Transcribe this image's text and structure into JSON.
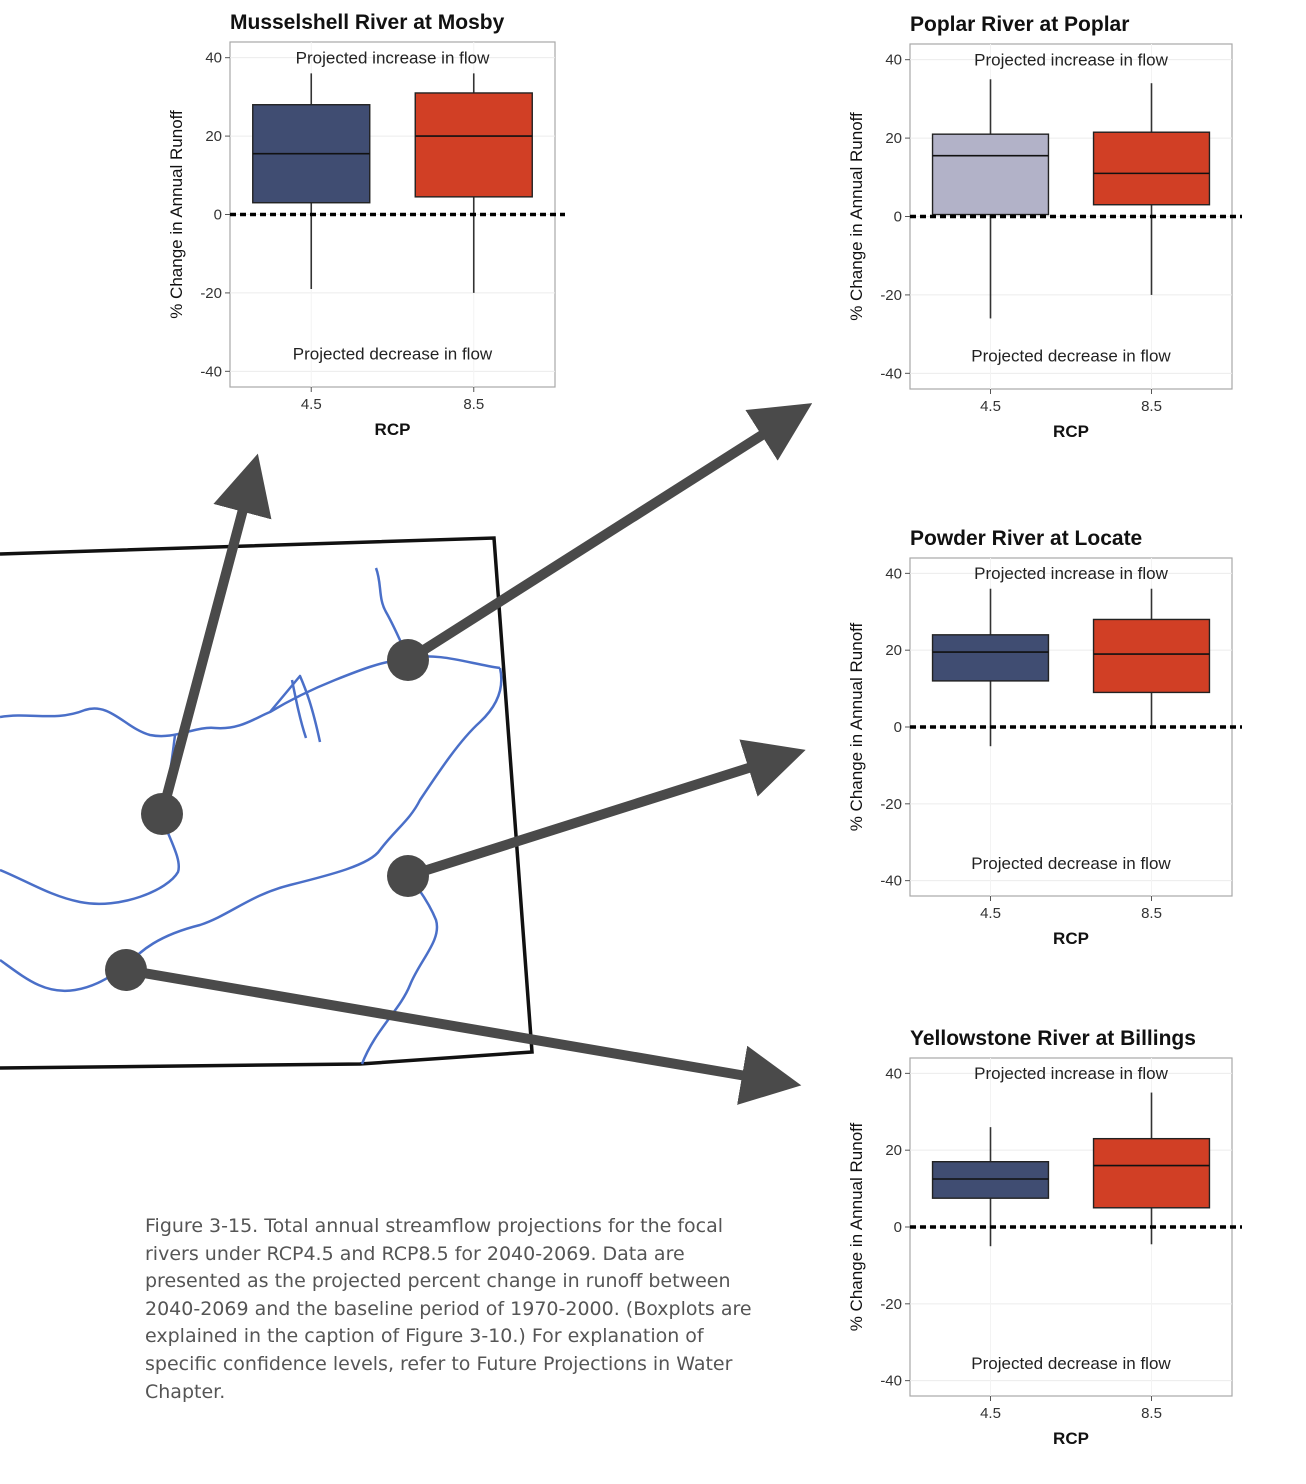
{
  "colors": {
    "rcp45": "#404d72",
    "rcp45_light": "#b2b2c8",
    "rcp85": "#d13f25",
    "river": "#4a6fc8",
    "arrow": "#4a4a4a"
  },
  "chart_data": [
    {
      "type": "boxplot",
      "title": "Musselshell River at Mosby",
      "xlabel": "RCP",
      "ylabel": "% Change in Annual Runoff",
      "categories": [
        "4.5",
        "8.5"
      ],
      "yticks": [
        40,
        20,
        0,
        -20,
        -40
      ],
      "ylim": [
        -44,
        44
      ],
      "reference_line": 0,
      "annotations": {
        "top": "Projected increase in flow",
        "bottom": "Projected decrease in flow"
      },
      "boxes": [
        {
          "rcp": "4.5",
          "whisker_low": -19,
          "q1": 3,
          "median": 15.5,
          "q3": 28,
          "whisker_high": 36,
          "color": "#404d72"
        },
        {
          "rcp": "8.5",
          "whisker_low": -20,
          "q1": 4.5,
          "median": 20,
          "q3": 31,
          "whisker_high": 36,
          "color": "#d13f25"
        }
      ]
    },
    {
      "type": "boxplot",
      "title": "Poplar River at Poplar",
      "xlabel": "RCP",
      "ylabel": "% Change in Annual Runoff",
      "categories": [
        "4.5",
        "8.5"
      ],
      "yticks": [
        40,
        20,
        0,
        -20,
        -40
      ],
      "ylim": [
        -44,
        44
      ],
      "reference_line": 0,
      "annotations": {
        "top": "Projected increase in flow",
        "bottom": "Projected decrease in flow"
      },
      "boxes": [
        {
          "rcp": "4.5",
          "whisker_low": -26,
          "q1": 0.5,
          "median": 15.5,
          "q3": 21,
          "whisker_high": 35,
          "color": "#b2b2c8"
        },
        {
          "rcp": "8.5",
          "whisker_low": -20,
          "q1": 3,
          "median": 11,
          "q3": 21.5,
          "whisker_high": 34,
          "color": "#d13f25"
        }
      ]
    },
    {
      "type": "boxplot",
      "title": "Powder River at Locate",
      "xlabel": "RCP",
      "ylabel": "% Change in Annual Runoff",
      "categories": [
        "4.5",
        "8.5"
      ],
      "yticks": [
        40,
        20,
        0,
        -20,
        -40
      ],
      "ylim": [
        -44,
        44
      ],
      "reference_line": 0,
      "annotations": {
        "top": "Projected increase in flow",
        "bottom": "Projected decrease in flow"
      },
      "boxes": [
        {
          "rcp": "4.5",
          "whisker_low": -5,
          "q1": 12,
          "median": 19.5,
          "q3": 24,
          "whisker_high": 36,
          "color": "#404d72"
        },
        {
          "rcp": "8.5",
          "whisker_low": -0.5,
          "q1": 9,
          "median": 19,
          "q3": 28,
          "whisker_high": 36,
          "color": "#d13f25"
        }
      ]
    },
    {
      "type": "boxplot",
      "title": "Yellowstone River at Billings",
      "xlabel": "RCP",
      "ylabel": "% Change in Annual Runoff",
      "categories": [
        "4.5",
        "8.5"
      ],
      "yticks": [
        40,
        20,
        0,
        -20,
        -40
      ],
      "ylim": [
        -44,
        44
      ],
      "reference_line": 0,
      "annotations": {
        "top": "Projected increase in flow",
        "bottom": "Projected decrease in flow"
      },
      "boxes": [
        {
          "rcp": "4.5",
          "whisker_low": -5,
          "q1": 7.5,
          "median": 12.5,
          "q3": 17,
          "whisker_high": 26,
          "color": "#404d72"
        },
        {
          "rcp": "8.5",
          "whisker_low": -4.5,
          "q1": 5,
          "median": 16,
          "q3": 23,
          "whisker_high": 35,
          "color": "#d13f25"
        }
      ]
    }
  ],
  "caption": "Figure 3-15. Total annual streamflow projections for the focal rivers under RCP4.5 and RCP8.5 for 2040-2069. Data are presented as the projected percent change in runoff between 2040-2069 and the baseline period of 1970-2000.  (Boxplots are explained in the caption of Figure 3-10.) For explanation of specific confidence levels, refer to Future Projections in Water Chapter."
}
